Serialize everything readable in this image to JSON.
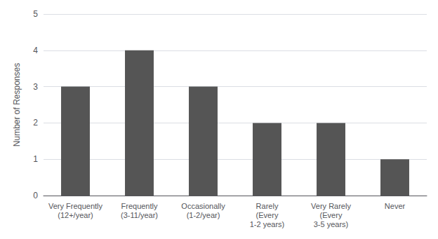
{
  "chart_data": {
    "type": "bar",
    "categories": [
      "Very Frequently\n(12+/year)",
      "Frequently\n(3-11/year)",
      "Occasionally\n(1-2/year)",
      "Rarely\n(Every\n1-2 years)",
      "Very Rarely\n(Every\n3-5 years)",
      "Never"
    ],
    "values": [
      3,
      4,
      3,
      2,
      2,
      1
    ],
    "color": "#555555",
    "ylabel": "Number of Responses",
    "ylim": [
      0,
      5
    ],
    "yticks": [
      0,
      1,
      2,
      3,
      4,
      5
    ],
    "grid": true
  }
}
